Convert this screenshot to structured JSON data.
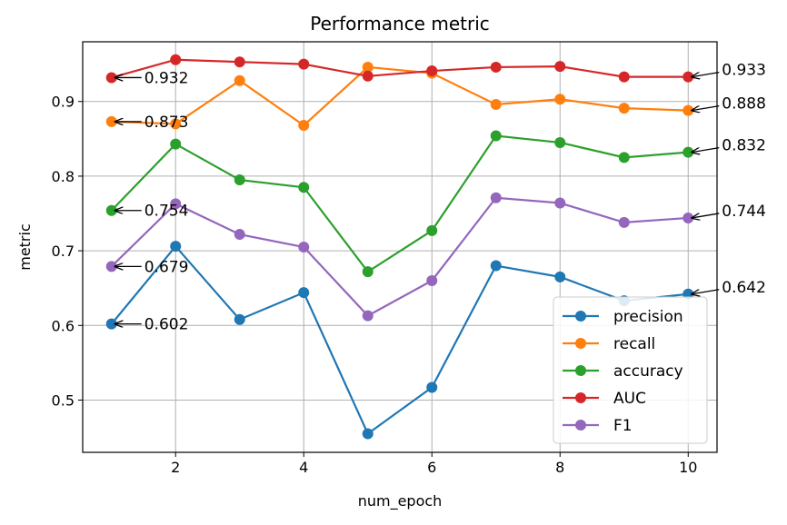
{
  "chart_data": {
    "type": "line",
    "title": "Performance metric",
    "xlabel": "num_epoch",
    "ylabel": "metric",
    "xlim": [
      0.55,
      10.45
    ],
    "ylim": [
      0.43,
      0.98
    ],
    "x_ticks": [
      2,
      4,
      6,
      8,
      10
    ],
    "y_ticks": [
      0.5,
      0.6,
      0.7,
      0.8,
      0.9
    ],
    "x_tick_labels": [
      "2",
      "4",
      "6",
      "8",
      "10"
    ],
    "y_tick_labels": [
      "0.5",
      "0.6",
      "0.7",
      "0.8",
      "0.9"
    ],
    "grid": true,
    "legend_position": "lower-right",
    "x": [
      1,
      2,
      3,
      4,
      5,
      6,
      7,
      8,
      9,
      10
    ],
    "series": [
      {
        "name": "precision",
        "color": "#1f77b4",
        "values": [
          0.602,
          0.706,
          0.608,
          0.644,
          0.455,
          0.517,
          0.68,
          0.665,
          0.633,
          0.642
        ]
      },
      {
        "name": "recall",
        "color": "#ff7f0e",
        "values": [
          0.873,
          0.87,
          0.928,
          0.868,
          0.946,
          0.938,
          0.896,
          0.903,
          0.891,
          0.888
        ]
      },
      {
        "name": "accuracy",
        "color": "#2ca02c",
        "values": [
          0.754,
          0.843,
          0.795,
          0.785,
          0.672,
          0.727,
          0.854,
          0.845,
          0.825,
          0.832
        ]
      },
      {
        "name": "AUC",
        "color": "#d62728",
        "values": [
          0.932,
          0.956,
          0.953,
          0.95,
          0.934,
          0.941,
          0.946,
          0.947,
          0.933,
          0.933
        ]
      },
      {
        "name": "F1",
        "color": "#9467bd",
        "values": [
          0.679,
          0.763,
          0.722,
          0.705,
          0.613,
          0.66,
          0.771,
          0.764,
          0.738,
          0.744
        ]
      }
    ],
    "annotations_start": [
      {
        "text": "0.932",
        "x": 1,
        "y": 0.932
      },
      {
        "text": "0.873",
        "x": 1,
        "y": 0.873
      },
      {
        "text": "0.754",
        "x": 1,
        "y": 0.754
      },
      {
        "text": "0.679",
        "x": 1,
        "y": 0.679
      },
      {
        "text": "0.602",
        "x": 1,
        "y": 0.602
      }
    ],
    "annotations_end": [
      {
        "text": "0.933",
        "x": 10,
        "y": 0.933
      },
      {
        "text": "0.888",
        "x": 10,
        "y": 0.888
      },
      {
        "text": "0.832",
        "x": 10,
        "y": 0.832
      },
      {
        "text": "0.744",
        "x": 10,
        "y": 0.744
      },
      {
        "text": "0.642",
        "x": 10,
        "y": 0.642
      }
    ]
  }
}
